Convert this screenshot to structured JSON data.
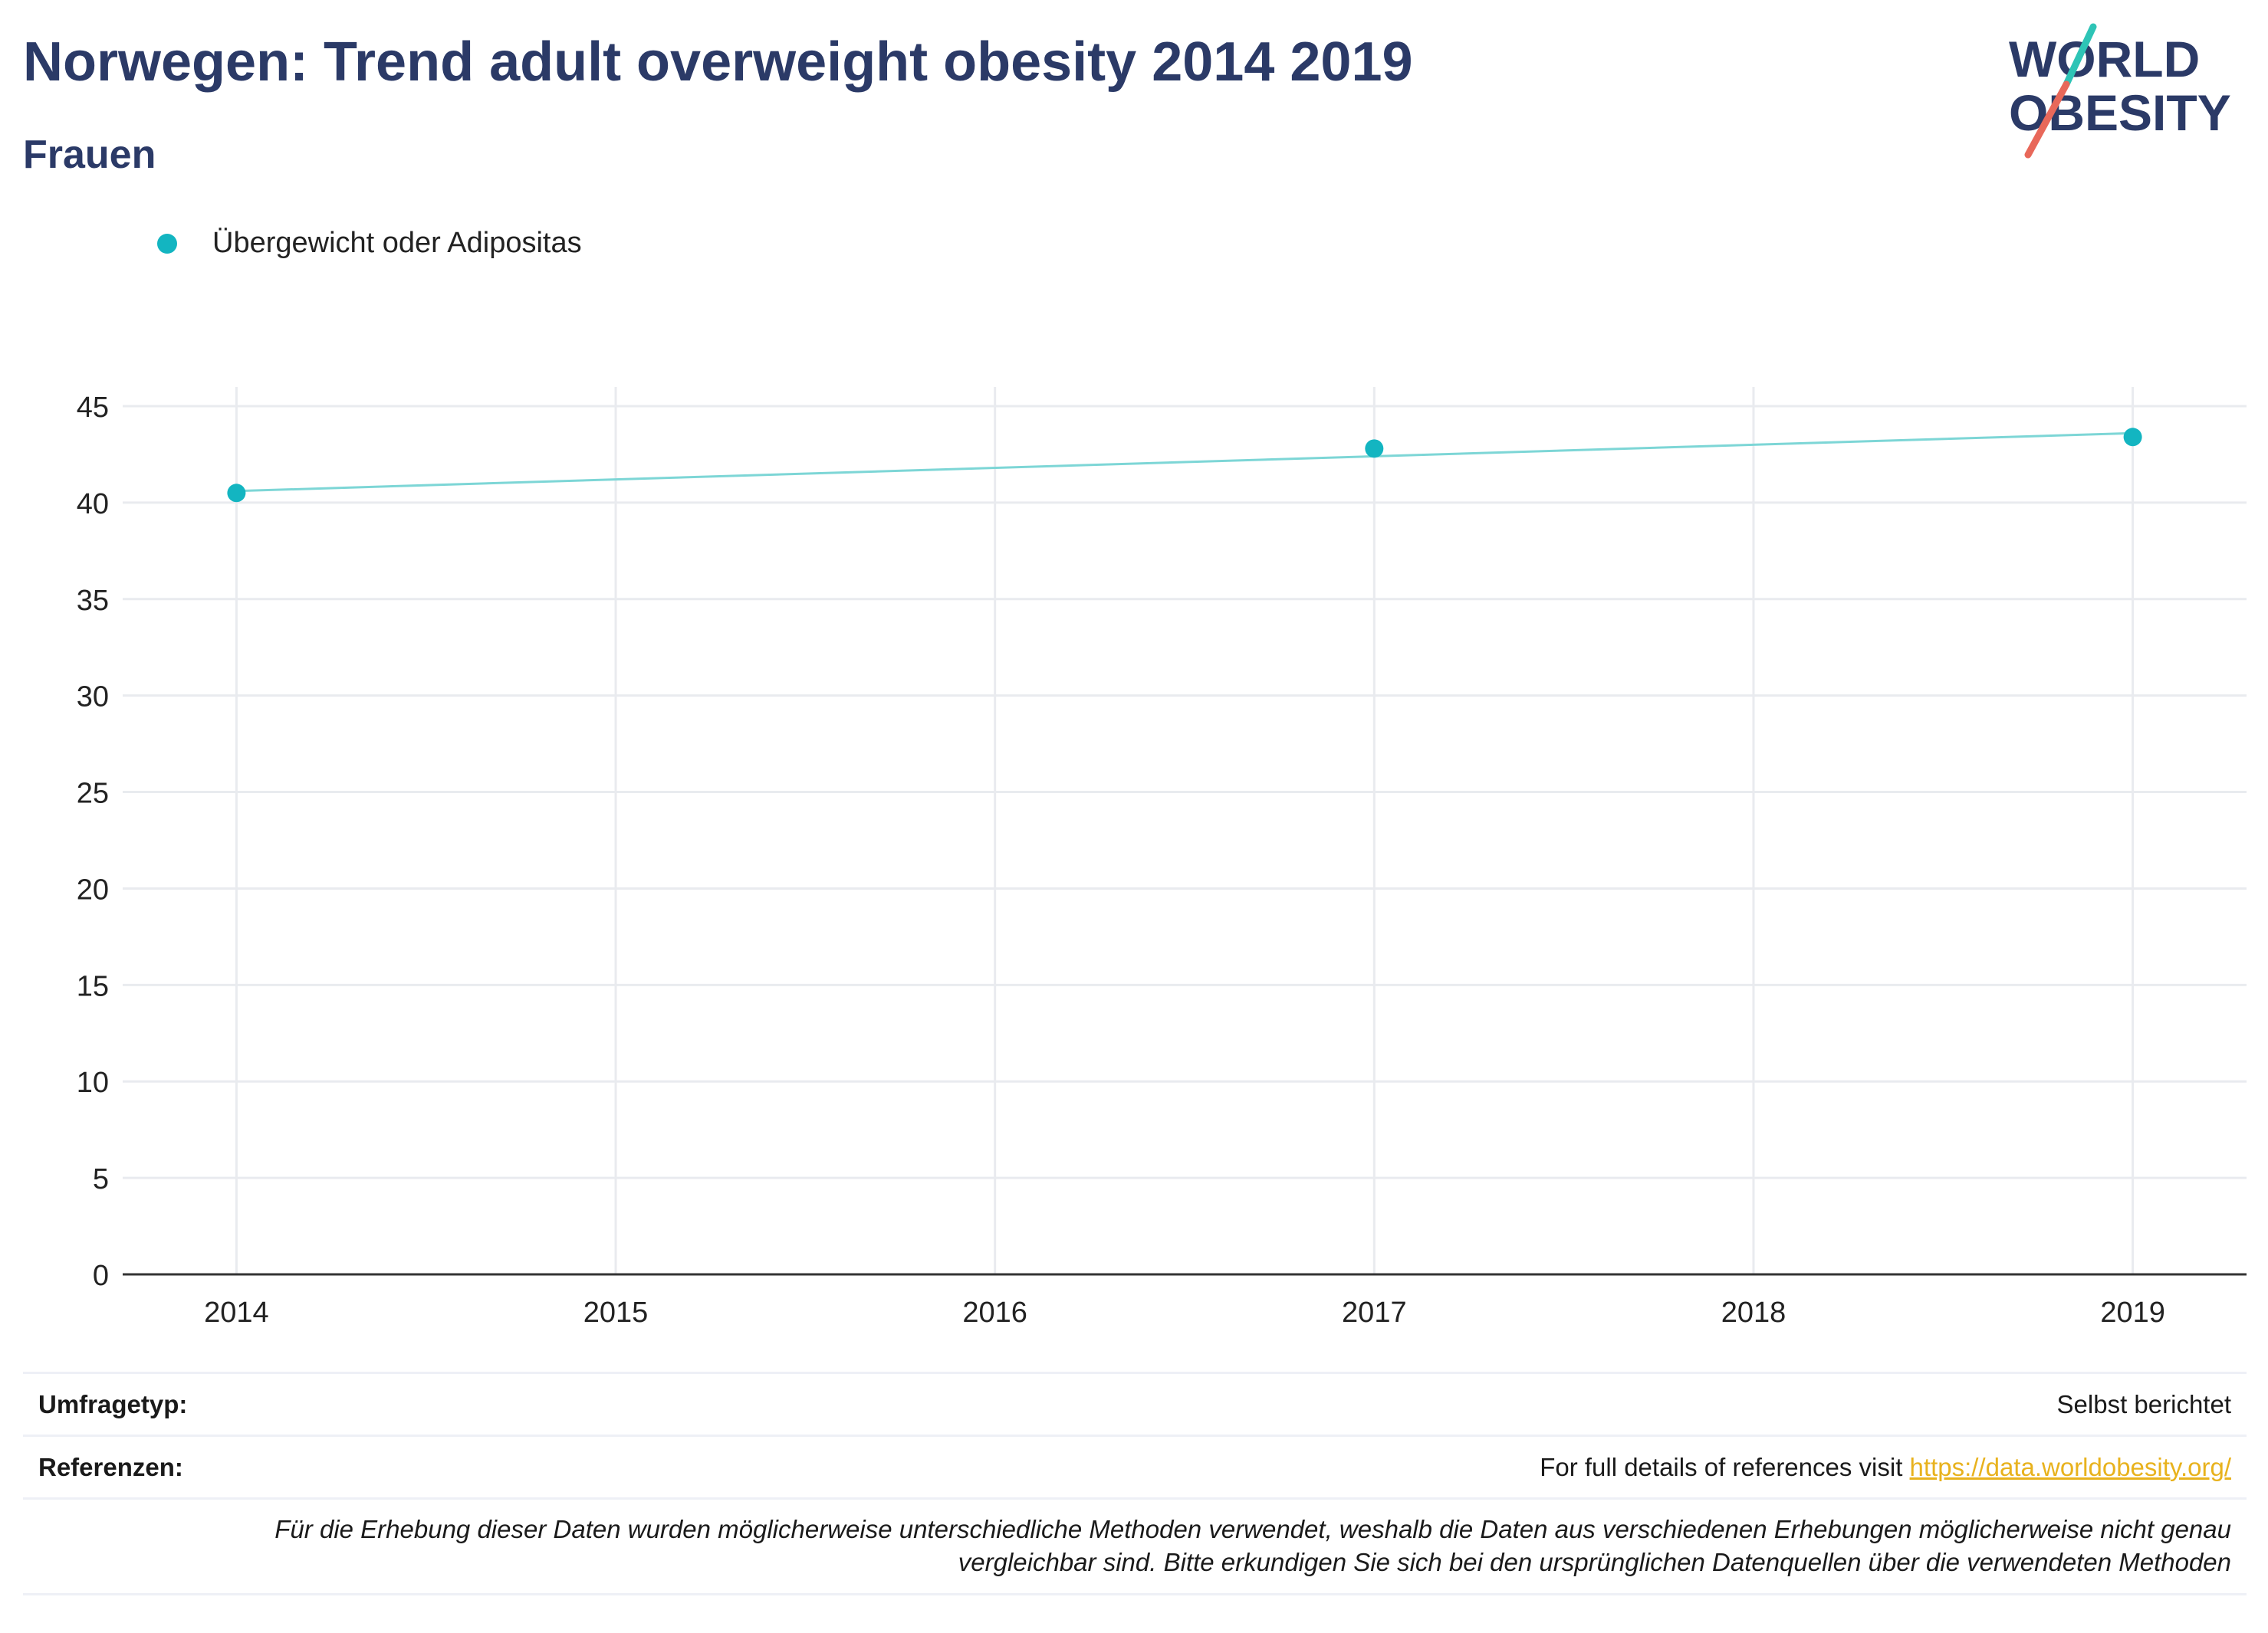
{
  "header": {
    "title": "Norwegen: Trend adult overweight obesity 2014 2019",
    "subtitle": "Frauen"
  },
  "logo": {
    "line1": "WORLD",
    "line2": "OBESITY"
  },
  "colors": {
    "series": "#13b5c1",
    "trend": "#7dd6d6",
    "title": "#2b3a67",
    "link": "#e8b21d",
    "logo_teal": "#2ec4b6",
    "logo_red": "#e8685a"
  },
  "chart_data": {
    "type": "scatter",
    "title": "Norwegen: Trend adult overweight obesity 2014 2019",
    "subtitle": "Frauen",
    "x_ticks": [
      "2014",
      "2015",
      "2016",
      "2017",
      "2018",
      "2019"
    ],
    "y_ticks": [
      "0",
      "5",
      "10",
      "15",
      "20",
      "25",
      "30",
      "35",
      "40",
      "45"
    ],
    "ylim": [
      0,
      45
    ],
    "xlim": [
      2013.7,
      2019.3
    ],
    "grid": true,
    "legend_placement": "top-left",
    "series": [
      {
        "name": "Übergewicht oder Adipositas",
        "x": [
          2014,
          2017,
          2019
        ],
        "y": [
          40.5,
          42.8,
          43.4
        ]
      }
    ],
    "trendline": {
      "x": [
        2014,
        2019
      ],
      "y": [
        40.6,
        43.6
      ]
    }
  },
  "info": {
    "survey_label": "Umfragetyp:",
    "survey_value": "Selbst berichtet",
    "refs_label": "Referenzen:",
    "refs_text": "For full details of references visit ",
    "refs_link": "https://data.worldobesity.org/",
    "note_line1": "Für die Erhebung dieser Daten wurden möglicherweise unterschiedliche Methoden verwendet, weshalb die Daten aus verschiedenen Erhebungen möglicherweise nicht genau",
    "note_line2": "vergleichbar sind. Bitte erkundigen Sie sich bei den ursprünglichen Datenquellen über die verwendeten Methoden"
  }
}
